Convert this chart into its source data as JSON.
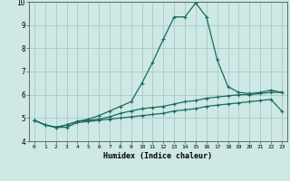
{
  "xlabel": "Humidex (Indice chaleur)",
  "ylabel": "",
  "background_color": "#cde8e5",
  "line_color": "#1a6b5a",
  "grid_color": "#aacfcc",
  "x": [
    0,
    1,
    2,
    3,
    4,
    5,
    6,
    7,
    8,
    9,
    10,
    11,
    12,
    13,
    14,
    15,
    16,
    17,
    18,
    19,
    20,
    21,
    22,
    23
  ],
  "line1": [
    4.9,
    4.7,
    4.6,
    4.6,
    4.8,
    4.85,
    4.9,
    4.95,
    5.0,
    5.05,
    5.1,
    5.15,
    5.2,
    5.3,
    5.35,
    5.4,
    5.5,
    5.55,
    5.6,
    5.65,
    5.7,
    5.75,
    5.8,
    5.3
  ],
  "line2": [
    4.9,
    4.7,
    4.6,
    4.7,
    4.85,
    4.9,
    4.95,
    5.05,
    5.2,
    5.3,
    5.4,
    5.45,
    5.5,
    5.6,
    5.7,
    5.75,
    5.85,
    5.9,
    5.95,
    6.0,
    6.0,
    6.05,
    6.1,
    6.1
  ],
  "line3": [
    4.9,
    4.7,
    4.6,
    4.7,
    4.85,
    4.95,
    5.1,
    5.3,
    5.5,
    5.7,
    6.5,
    7.4,
    8.4,
    9.35,
    9.35,
    9.95,
    9.35,
    7.5,
    6.35,
    6.1,
    6.05,
    6.1,
    6.2,
    6.1
  ],
  "xlim": [
    -0.5,
    23.5
  ],
  "ylim": [
    4.0,
    10.0
  ],
  "yticks": [
    4,
    5,
    6,
    7,
    8,
    9,
    10
  ],
  "xticks": [
    0,
    1,
    2,
    3,
    4,
    5,
    6,
    7,
    8,
    9,
    10,
    11,
    12,
    13,
    14,
    15,
    16,
    17,
    18,
    19,
    20,
    21,
    22,
    23
  ]
}
